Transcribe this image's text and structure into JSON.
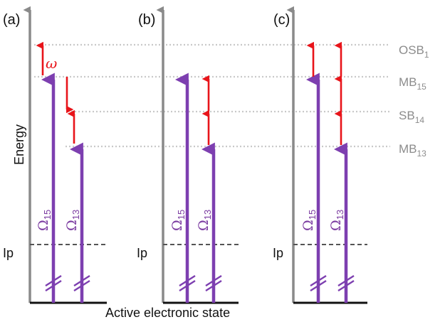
{
  "colors": {
    "pump_arrow": "#7d3fb0",
    "probe_arrow": "#e8141a",
    "axis": "#8a8a8a",
    "level_line": "#c9c9c9",
    "level_label": "#8c8c8c",
    "ip_line": "#555555"
  },
  "axes": {
    "y_title": "Energy",
    "x_title": "Active electronic state"
  },
  "levels": [
    {
      "name": "OSB",
      "sub": "1"
    },
    {
      "name": "MB",
      "sub": "15"
    },
    {
      "name": "SB",
      "sub": "14"
    },
    {
      "name": "MB",
      "sub": "13"
    }
  ],
  "ip_label": "Ip",
  "omega_label": "ω",
  "panels": [
    {
      "label": "(a)",
      "pumps": [
        {
          "symbol": "Ω",
          "sub": "15"
        },
        {
          "symbol": "Ω",
          "sub": "13"
        }
      ]
    },
    {
      "label": "(b)",
      "pumps": [
        {
          "symbol": "Ω",
          "sub": "15"
        },
        {
          "symbol": "Ω",
          "sub": "13"
        }
      ]
    },
    {
      "label": "(c)",
      "pumps": [
        {
          "symbol": "Ω",
          "sub": "15"
        },
        {
          "symbol": "Ω",
          "sub": "13"
        }
      ]
    }
  ]
}
